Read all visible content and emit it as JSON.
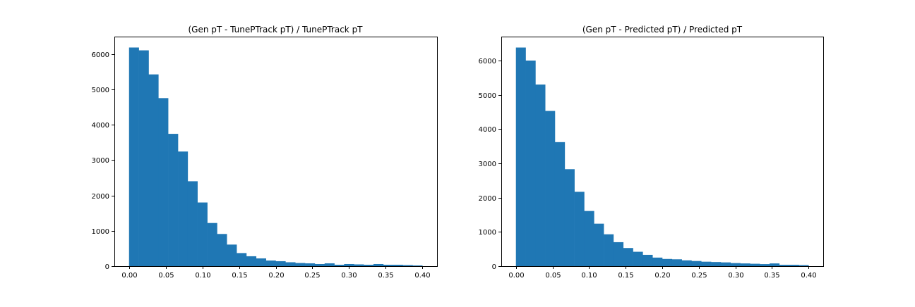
{
  "figure": {
    "background": "#ffffff",
    "bar_color": "#1f77b4"
  },
  "chart_data": [
    {
      "type": "histogram",
      "title": "(Gen pT - TunePTrack pT) / TunePTrack pT",
      "xlabel": "",
      "ylabel": "",
      "bin_edges": [
        0.0,
        0.0133,
        0.0267,
        0.04,
        0.0533,
        0.0667,
        0.08,
        0.0933,
        0.1067,
        0.12,
        0.1333,
        0.1467,
        0.16,
        0.1733,
        0.1867,
        0.2,
        0.2133,
        0.2267,
        0.24,
        0.2533,
        0.2667,
        0.28,
        0.2933,
        0.3067,
        0.32,
        0.3333,
        0.3467,
        0.36,
        0.3733,
        0.3867,
        0.4
      ],
      "values": [
        6180,
        6100,
        5420,
        4750,
        3740,
        3240,
        2400,
        1800,
        1220,
        910,
        610,
        370,
        280,
        220,
        160,
        140,
        110,
        90,
        80,
        60,
        80,
        40,
        60,
        50,
        40,
        60,
        40,
        40,
        30,
        20
      ],
      "xlim": [
        -0.02,
        0.42
      ],
      "ylim": [
        0,
        6488
      ],
      "xticks": [
        0.0,
        0.05,
        0.1,
        0.15,
        0.2,
        0.25,
        0.3,
        0.35,
        0.4
      ],
      "xtick_labels": [
        "0.00",
        "0.05",
        "0.10",
        "0.15",
        "0.20",
        "0.25",
        "0.30",
        "0.35",
        "0.40"
      ],
      "yticks": [
        0,
        1000,
        2000,
        3000,
        4000,
        5000,
        6000
      ],
      "ytick_labels": [
        "0",
        "1000",
        "2000",
        "3000",
        "4000",
        "5000",
        "6000"
      ],
      "grid": false,
      "legend": "none"
    },
    {
      "type": "histogram",
      "title": "(Gen pT - Predicted pT) / Predicted pT",
      "xlabel": "",
      "ylabel": "",
      "bin_edges": [
        0.0,
        0.0133,
        0.0267,
        0.04,
        0.0533,
        0.0667,
        0.08,
        0.0933,
        0.1067,
        0.12,
        0.1333,
        0.1467,
        0.16,
        0.1733,
        0.1867,
        0.2,
        0.2133,
        0.2267,
        0.24,
        0.2533,
        0.2667,
        0.28,
        0.2933,
        0.3067,
        0.32,
        0.3333,
        0.3467,
        0.36,
        0.3733,
        0.3867,
        0.4
      ],
      "values": [
        6380,
        6000,
        5300,
        4530,
        3620,
        2830,
        2170,
        1610,
        1240,
        930,
        700,
        530,
        420,
        330,
        250,
        210,
        200,
        170,
        150,
        130,
        120,
        110,
        90,
        80,
        70,
        60,
        80,
        40,
        40,
        30
      ],
      "xlim": [
        -0.02,
        0.42
      ],
      "ylim": [
        0,
        6699
      ],
      "xticks": [
        0.0,
        0.05,
        0.1,
        0.15,
        0.2,
        0.25,
        0.3,
        0.35,
        0.4
      ],
      "xtick_labels": [
        "0.00",
        "0.05",
        "0.10",
        "0.15",
        "0.20",
        "0.25",
        "0.30",
        "0.35",
        "0.40"
      ],
      "yticks": [
        0,
        1000,
        2000,
        3000,
        4000,
        5000,
        6000
      ],
      "ytick_labels": [
        "0",
        "1000",
        "2000",
        "3000",
        "4000",
        "5000",
        "6000"
      ],
      "grid": false,
      "legend": "none"
    }
  ]
}
